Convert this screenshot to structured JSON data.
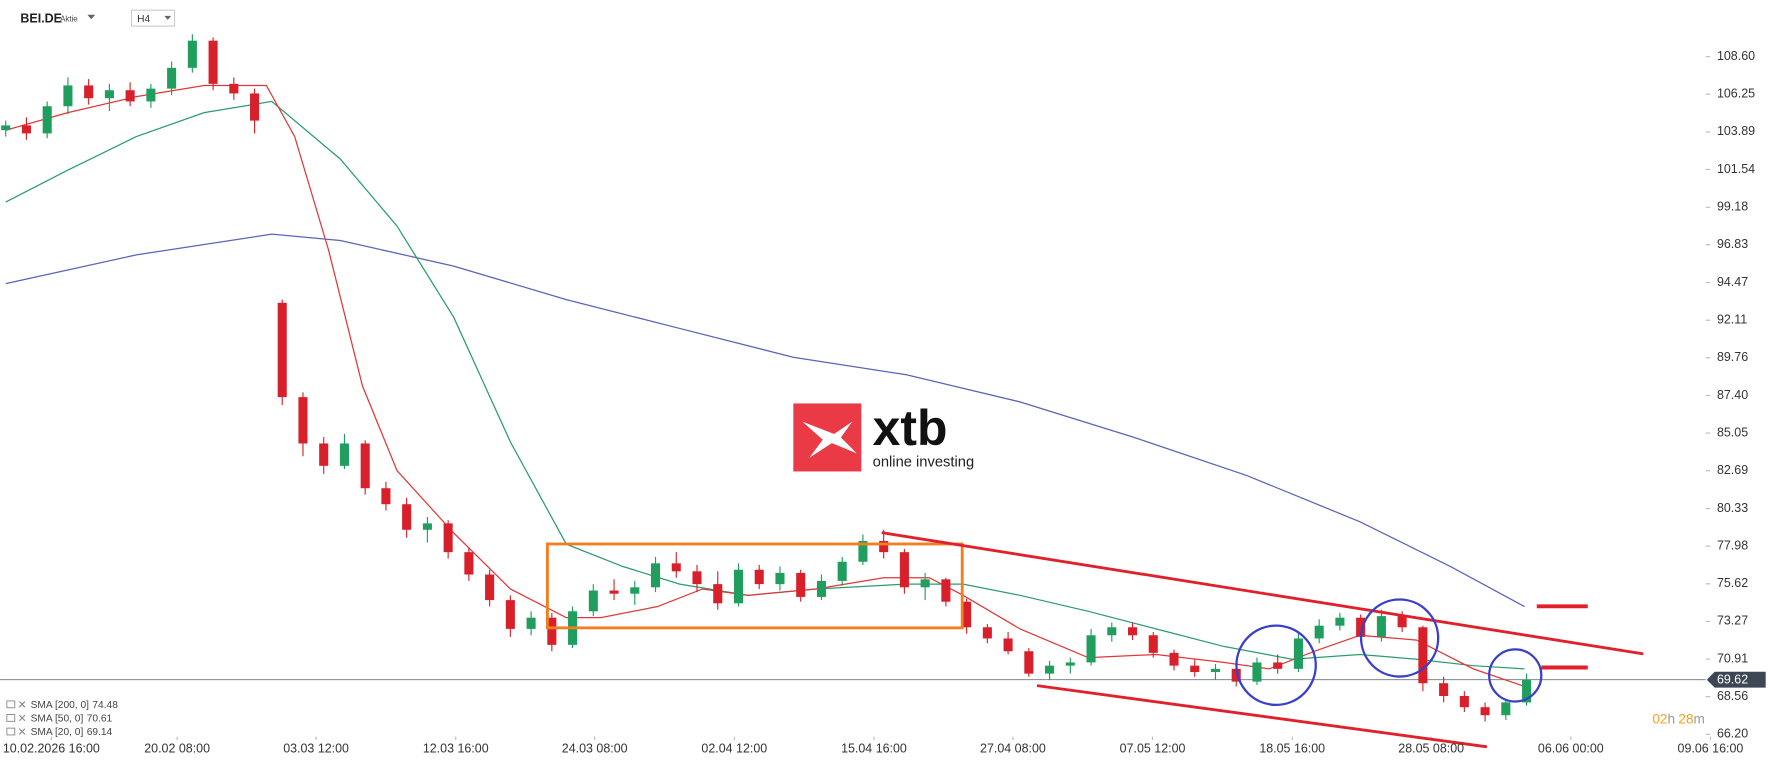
{
  "header": {
    "symbol": "BEI.DE",
    "asset_type": "Aktie",
    "interval": "H4"
  },
  "logo": {
    "brand": "xtb",
    "tagline": "online investing"
  },
  "countdown": {
    "hours": "02",
    "hours_unit": "h",
    "minutes": "28",
    "minutes_unit": "m"
  },
  "chart_data": {
    "type": "candlestick",
    "up_color": "#1f9e5e",
    "down_color": "#d8202a",
    "ylim": [
      66.2,
      108.6
    ],
    "yticks": [
      {
        "value": 108.6,
        "label": "108.60"
      },
      106.25,
      103.89,
      101.54,
      99.18,
      96.83,
      94.47,
      92.11,
      89.76,
      {
        "value": 87.4,
        "label": "87.40"
      },
      85.05,
      82.69,
      80.33,
      77.98,
      75.62,
      73.27,
      70.91,
      68.56,
      {
        "value": 66.2,
        "label": "66.20"
      }
    ],
    "xlim": [
      0,
      247
    ],
    "xticks": [
      {
        "value": 6.6,
        "label": "10.02.2026 16:00"
      },
      {
        "value": 24.8,
        "label": "20.02 08:00"
      },
      {
        "value": 44.9,
        "label": "03.03 12:00"
      },
      {
        "value": 65.1,
        "label": "12.03 16:00"
      },
      {
        "value": 85.2,
        "label": "24.03 08:00"
      },
      {
        "value": 105.4,
        "label": "02.04 12:00"
      },
      {
        "value": 125.6,
        "label": "15.04 16:00"
      },
      {
        "value": 145.7,
        "label": "27.04 08:00"
      },
      {
        "value": 165.9,
        "label": "07.05 12:00"
      },
      {
        "value": 186.1,
        "label": "18.05 16:00"
      },
      {
        "value": 206.2,
        "label": "28.05 08:00"
      },
      {
        "value": 226.4,
        "label": "06.06 00:00"
      },
      {
        "value": 246.6,
        "label": "09.06 16:00"
      }
    ],
    "last_price": {
      "value": 69.62,
      "label": "69.62"
    },
    "candles": {
      "x": [
        0,
        3,
        6,
        9,
        12,
        15,
        18,
        21,
        24,
        27,
        30,
        33,
        36,
        40,
        43,
        46,
        49,
        52,
        55,
        58,
        61,
        64,
        67,
        70,
        73,
        76,
        79,
        82,
        85,
        88,
        91,
        94,
        97,
        100,
        103,
        106,
        109,
        112,
        115,
        118,
        121,
        124,
        127,
        130,
        133,
        136,
        139,
        142,
        145,
        148,
        151,
        154,
        157,
        160,
        163,
        166,
        169,
        172,
        175,
        178,
        181,
        184,
        187,
        190,
        193,
        196,
        199,
        202,
        205,
        208,
        211,
        214,
        217,
        220
      ],
      "open": [
        104.0,
        104.3,
        103.8,
        105.5,
        106.8,
        106.0,
        106.5,
        105.8,
        106.6,
        107.9,
        109.6,
        106.9,
        106.3,
        93.2,
        87.3,
        84.4,
        83.0,
        84.4,
        81.6,
        80.6,
        79.0,
        79.4,
        77.6,
        76.2,
        74.6,
        72.8,
        73.5,
        71.8,
        73.9,
        75.2,
        75.0,
        75.4,
        76.9,
        76.4,
        75.6,
        74.4,
        76.5,
        75.6,
        76.3,
        74.8,
        75.8,
        77.0,
        78.3,
        77.6,
        75.4,
        75.9,
        74.5,
        72.9,
        72.2,
        71.4,
        70.0,
        70.5,
        70.7,
        72.4,
        72.9,
        72.4,
        71.3,
        70.5,
        70.1,
        70.3,
        69.5,
        70.7,
        70.3,
        72.2,
        73.0,
        73.5,
        72.3,
        73.6,
        72.9,
        69.4,
        68.6,
        67.9,
        67.4,
        68.2
      ],
      "high": [
        104.6,
        104.8,
        105.8,
        107.3,
        107.2,
        106.9,
        107.0,
        106.9,
        108.3,
        110.0,
        109.8,
        107.3,
        106.6,
        93.4,
        87.6,
        84.8,
        85.0,
        84.6,
        82.0,
        81.0,
        79.8,
        79.6,
        77.9,
        76.5,
        74.9,
        73.9,
        73.8,
        74.2,
        75.6,
        75.9,
        75.8,
        77.3,
        77.6,
        76.8,
        76.4,
        76.9,
        76.8,
        76.7,
        76.5,
        76.2,
        77.3,
        78.7,
        79.0,
        77.8,
        76.3,
        76.0,
        74.7,
        73.1,
        72.6,
        71.6,
        70.8,
        71.0,
        72.8,
        73.2,
        73.2,
        72.6,
        71.5,
        70.9,
        70.6,
        70.5,
        71.0,
        71.2,
        72.5,
        73.4,
        73.8,
        73.7,
        74.0,
        73.9,
        73.0,
        69.8,
        68.9,
        68.2,
        68.4,
        70.0
      ],
      "low": [
        103.6,
        103.4,
        103.5,
        105.0,
        105.6,
        105.2,
        105.5,
        105.4,
        106.2,
        107.6,
        106.5,
        105.9,
        103.8,
        86.8,
        83.6,
        82.5,
        82.8,
        81.2,
        80.2,
        78.5,
        78.2,
        77.2,
        75.8,
        74.2,
        72.3,
        72.4,
        71.4,
        71.6,
        73.6,
        74.6,
        74.3,
        75.1,
        76.0,
        75.1,
        74.0,
        74.2,
        75.3,
        75.2,
        74.5,
        74.6,
        75.5,
        76.8,
        77.2,
        75.0,
        74.6,
        74.2,
        72.5,
        71.9,
        71.2,
        69.8,
        69.6,
        70.0,
        70.5,
        72.0,
        72.1,
        71.0,
        70.2,
        69.8,
        69.6,
        69.2,
        69.3,
        70.0,
        70.1,
        71.9,
        72.7,
        72.0,
        72.0,
        72.6,
        68.9,
        68.2,
        67.6,
        67.0,
        67.1,
        68.0
      ],
      "close": [
        104.3,
        103.8,
        105.5,
        106.8,
        106.0,
        106.5,
        105.8,
        106.6,
        107.9,
        109.6,
        106.9,
        106.3,
        104.6,
        87.3,
        84.4,
        83.0,
        84.4,
        81.6,
        80.6,
        79.0,
        79.4,
        77.6,
        76.2,
        74.6,
        72.8,
        73.5,
        71.8,
        73.9,
        75.2,
        75.0,
        75.4,
        76.9,
        76.4,
        75.6,
        74.4,
        76.5,
        75.6,
        76.3,
        74.8,
        75.8,
        77.0,
        78.3,
        77.6,
        75.4,
        75.9,
        74.5,
        72.9,
        72.2,
        71.4,
        70.0,
        70.5,
        70.7,
        72.4,
        72.9,
        72.4,
        71.3,
        70.5,
        70.1,
        70.3,
        69.5,
        70.7,
        70.3,
        72.2,
        73.0,
        73.5,
        72.3,
        73.6,
        72.9,
        69.4,
        68.6,
        67.9,
        67.4,
        68.2,
        69.6
      ]
    },
    "series": [
      {
        "name": "SMA [200, 0]",
        "last_value": 74.48,
        "color": "#5b63b7",
        "x": [
          0,
          18.9,
          38.5,
          48.4,
          64.8,
          81.1,
          97.5,
          113.9,
          130.3,
          146.7,
          163.1,
          179.5,
          195.9,
          209,
          219.7
        ],
        "values": [
          94.4,
          96.2,
          97.5,
          97.1,
          95.5,
          93.4,
          91.6,
          89.8,
          88.7,
          87.0,
          84.8,
          82.4,
          79.5,
          76.7,
          74.2
        ]
      },
      {
        "name": "SMA [50, 0]",
        "last_value": 70.61,
        "color": "#2a9d6c",
        "x": [
          0,
          9,
          18.9,
          28.7,
          38.5,
          48.4,
          56.6,
          64.8,
          73,
          81.1,
          89.3,
          97.5,
          107.4,
          117.2,
          130.3,
          138.5,
          146.7,
          156.6,
          166.4,
          176.2,
          186.1,
          195.9,
          204.1,
          212.3,
          219.7
        ],
        "values": [
          99.5,
          101.5,
          103.6,
          105.1,
          105.8,
          102.2,
          98.0,
          92.3,
          84.5,
          78.1,
          76.7,
          75.6,
          74.9,
          75.3,
          75.6,
          75.6,
          74.9,
          73.9,
          72.8,
          71.7,
          70.9,
          71.2,
          70.9,
          70.5,
          70.3
        ]
      },
      {
        "name": "SMA [20, 0]",
        "last_value": 69.14,
        "color": "#e0383a",
        "x": [
          0,
          9,
          18.9,
          28.7,
          37.7,
          41.8,
          46.7,
          51.6,
          56.6,
          64.8,
          73,
          81.1,
          86.1,
          94.3,
          100.8,
          107.4,
          117.2,
          127,
          133.6,
          138.5,
          146.7,
          156.6,
          166.4,
          176.2,
          182.8,
          189.3,
          195.9,
          204.1,
          212.3,
          219.7
        ],
        "values": [
          104.0,
          105.1,
          106.1,
          106.8,
          106.8,
          103.6,
          96.5,
          88.0,
          82.7,
          78.8,
          75.3,
          73.5,
          73.5,
          74.2,
          75.3,
          74.9,
          75.3,
          76.0,
          76.0,
          74.9,
          72.8,
          71.0,
          71.2,
          70.7,
          70.3,
          71.4,
          72.4,
          72.1,
          70.3,
          69.2
        ]
      }
    ]
  }
}
